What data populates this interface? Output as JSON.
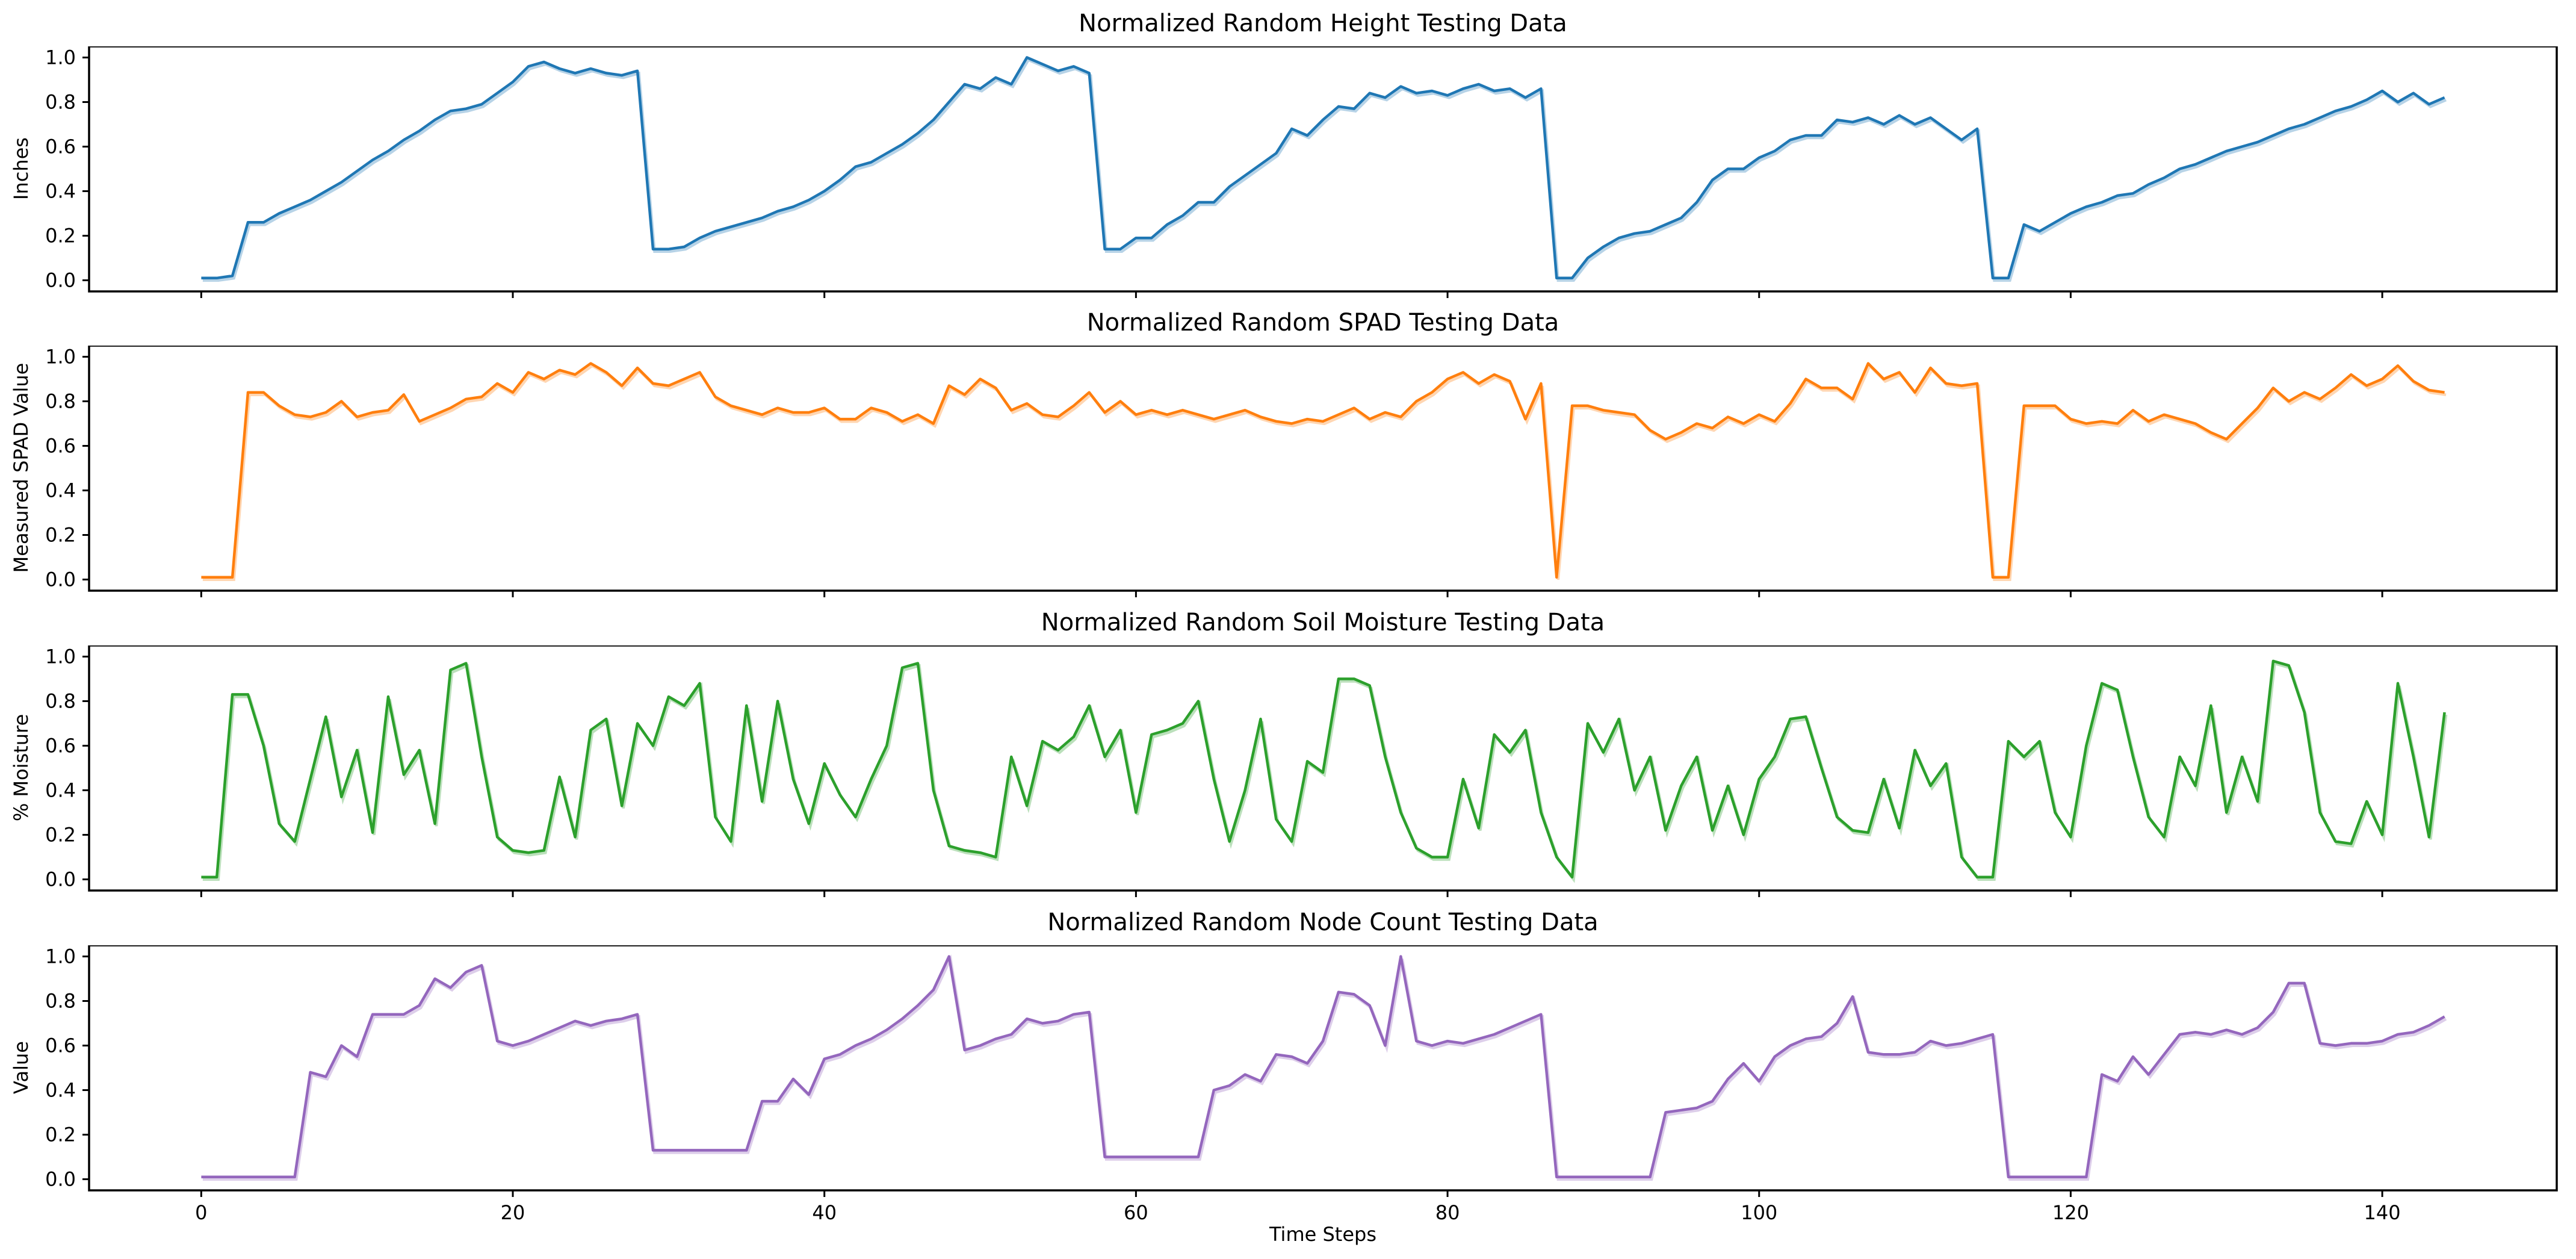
{
  "figure": {
    "background": "#ffffff",
    "text_color": "#000000",
    "spine_color": "#000000"
  },
  "axes": {
    "xlabel": "Time Steps",
    "xlim": [
      -7.2,
      151.2
    ],
    "ylim": [
      -0.05,
      1.05
    ],
    "grid": false,
    "legend": "none",
    "xticks": [
      {
        "value": 0,
        "label": "0"
      },
      {
        "value": 20,
        "label": "20"
      },
      {
        "value": 40,
        "label": "40"
      },
      {
        "value": 60,
        "label": "60"
      },
      {
        "value": 80,
        "label": "80"
      },
      {
        "value": 100,
        "label": "100"
      },
      {
        "value": 120,
        "label": "120"
      },
      {
        "value": 140,
        "label": "140"
      }
    ],
    "yticks": [
      {
        "value": 0.0,
        "label": "0.0"
      },
      {
        "value": 0.2,
        "label": "0.2"
      },
      {
        "value": 0.4,
        "label": "0.4"
      },
      {
        "value": 0.6,
        "label": "0.6"
      },
      {
        "value": 0.8,
        "label": "0.8"
      },
      {
        "value": 1.0,
        "label": "1.0"
      }
    ]
  },
  "chart_data": [
    {
      "type": "line",
      "title": "Normalized Random Height Testing Data",
      "ylabel": "Inches",
      "color": "#1f77b4",
      "x_start": 0,
      "x_step": 1,
      "values": [
        0.01,
        0.01,
        0.02,
        0.26,
        0.26,
        0.3,
        0.33,
        0.36,
        0.4,
        0.44,
        0.49,
        0.54,
        0.58,
        0.63,
        0.67,
        0.72,
        0.76,
        0.77,
        0.79,
        0.84,
        0.89,
        0.96,
        0.98,
        0.95,
        0.93,
        0.95,
        0.93,
        0.92,
        0.94,
        0.14,
        0.14,
        0.15,
        0.19,
        0.22,
        0.24,
        0.26,
        0.28,
        0.31,
        0.33,
        0.36,
        0.4,
        0.45,
        0.51,
        0.53,
        0.57,
        0.61,
        0.66,
        0.72,
        0.8,
        0.88,
        0.86,
        0.91,
        0.88,
        1.0,
        0.97,
        0.94,
        0.96,
        0.93,
        0.14,
        0.14,
        0.19,
        0.19,
        0.25,
        0.29,
        0.35,
        0.35,
        0.42,
        0.47,
        0.52,
        0.57,
        0.68,
        0.65,
        0.72,
        0.78,
        0.77,
        0.84,
        0.82,
        0.87,
        0.84,
        0.85,
        0.83,
        0.86,
        0.88,
        0.85,
        0.86,
        0.82,
        0.86,
        0.01,
        0.01,
        0.1,
        0.15,
        0.19,
        0.21,
        0.22,
        0.25,
        0.28,
        0.35,
        0.45,
        0.5,
        0.5,
        0.55,
        0.58,
        0.63,
        0.65,
        0.65,
        0.72,
        0.71,
        0.73,
        0.7,
        0.74,
        0.7,
        0.73,
        0.68,
        0.63,
        0.68,
        0.01,
        0.01,
        0.25,
        0.22,
        0.26,
        0.3,
        0.33,
        0.35,
        0.38,
        0.39,
        0.43,
        0.46,
        0.5,
        0.52,
        0.55,
        0.58,
        0.6,
        0.62,
        0.65,
        0.68,
        0.7,
        0.73,
        0.76,
        0.78,
        0.81,
        0.85,
        0.8,
        0.84,
        0.79,
        0.82
      ]
    },
    {
      "type": "line",
      "title": "Normalized Random SPAD Testing Data",
      "ylabel": "Measured SPAD Value",
      "color": "#ff7f0e",
      "x_start": 0,
      "x_step": 1,
      "values": [
        0.01,
        0.01,
        0.01,
        0.84,
        0.84,
        0.78,
        0.74,
        0.73,
        0.75,
        0.8,
        0.73,
        0.75,
        0.76,
        0.83,
        0.71,
        0.74,
        0.77,
        0.81,
        0.82,
        0.88,
        0.84,
        0.93,
        0.9,
        0.94,
        0.92,
        0.97,
        0.93,
        0.87,
        0.95,
        0.88,
        0.87,
        0.9,
        0.93,
        0.82,
        0.78,
        0.76,
        0.74,
        0.77,
        0.75,
        0.75,
        0.77,
        0.72,
        0.72,
        0.77,
        0.75,
        0.71,
        0.74,
        0.7,
        0.87,
        0.83,
        0.9,
        0.86,
        0.76,
        0.79,
        0.74,
        0.73,
        0.78,
        0.84,
        0.75,
        0.8,
        0.74,
        0.76,
        0.74,
        0.76,
        0.74,
        0.72,
        0.74,
        0.76,
        0.73,
        0.71,
        0.7,
        0.72,
        0.71,
        0.74,
        0.77,
        0.72,
        0.75,
        0.73,
        0.8,
        0.84,
        0.9,
        0.93,
        0.88,
        0.92,
        0.89,
        0.72,
        0.88,
        0.01,
        0.78,
        0.78,
        0.76,
        0.75,
        0.74,
        0.67,
        0.63,
        0.66,
        0.7,
        0.68,
        0.73,
        0.7,
        0.74,
        0.71,
        0.79,
        0.9,
        0.86,
        0.86,
        0.81,
        0.97,
        0.9,
        0.93,
        0.84,
        0.95,
        0.88,
        0.87,
        0.88,
        0.01,
        0.01,
        0.78,
        0.78,
        0.78,
        0.72,
        0.7,
        0.71,
        0.7,
        0.76,
        0.71,
        0.74,
        0.72,
        0.7,
        0.66,
        0.63,
        0.7,
        0.77,
        0.86,
        0.8,
        0.84,
        0.81,
        0.86,
        0.92,
        0.87,
        0.9,
        0.96,
        0.89,
        0.85,
        0.84
      ]
    },
    {
      "type": "line",
      "title": "Normalized Random Soil Moisture Testing Data",
      "ylabel": "% Moisture",
      "color": "#2ca02c",
      "x_start": 0,
      "x_step": 1,
      "values": [
        0.01,
        0.01,
        0.83,
        0.83,
        0.6,
        0.25,
        0.17,
        0.45,
        0.73,
        0.37,
        0.58,
        0.21,
        0.82,
        0.47,
        0.58,
        0.25,
        0.94,
        0.97,
        0.55,
        0.19,
        0.13,
        0.12,
        0.13,
        0.46,
        0.19,
        0.67,
        0.72,
        0.33,
        0.7,
        0.6,
        0.82,
        0.78,
        0.88,
        0.28,
        0.17,
        0.78,
        0.35,
        0.8,
        0.45,
        0.25,
        0.52,
        0.38,
        0.28,
        0.45,
        0.6,
        0.95,
        0.97,
        0.4,
        0.15,
        0.13,
        0.12,
        0.1,
        0.55,
        0.33,
        0.62,
        0.58,
        0.64,
        0.78,
        0.55,
        0.67,
        0.3,
        0.65,
        0.67,
        0.7,
        0.8,
        0.45,
        0.17,
        0.4,
        0.72,
        0.27,
        0.17,
        0.53,
        0.48,
        0.9,
        0.9,
        0.87,
        0.55,
        0.3,
        0.14,
        0.1,
        0.1,
        0.45,
        0.23,
        0.65,
        0.57,
        0.67,
        0.3,
        0.1,
        0.01,
        0.7,
        0.57,
        0.72,
        0.4,
        0.55,
        0.22,
        0.42,
        0.55,
        0.22,
        0.42,
        0.2,
        0.45,
        0.55,
        0.72,
        0.73,
        0.5,
        0.28,
        0.22,
        0.21,
        0.45,
        0.23,
        0.58,
        0.42,
        0.52,
        0.1,
        0.01,
        0.01,
        0.62,
        0.55,
        0.62,
        0.3,
        0.19,
        0.6,
        0.88,
        0.85,
        0.55,
        0.28,
        0.19,
        0.55,
        0.42,
        0.78,
        0.3,
        0.55,
        0.35,
        0.98,
        0.96,
        0.75,
        0.3,
        0.17,
        0.16,
        0.35,
        0.2,
        0.88,
        0.55,
        0.19,
        0.75
      ]
    },
    {
      "type": "line",
      "title": "Normalized Random Node Count Testing Data",
      "ylabel": "Value",
      "color": "#9467bd",
      "x_start": 0,
      "x_step": 1,
      "values": [
        0.01,
        0.01,
        0.01,
        0.01,
        0.01,
        0.01,
        0.01,
        0.48,
        0.46,
        0.6,
        0.55,
        0.74,
        0.74,
        0.74,
        0.78,
        0.9,
        0.86,
        0.93,
        0.96,
        0.62,
        0.6,
        0.62,
        0.65,
        0.68,
        0.71,
        0.69,
        0.71,
        0.72,
        0.74,
        0.13,
        0.13,
        0.13,
        0.13,
        0.13,
        0.13,
        0.13,
        0.35,
        0.35,
        0.45,
        0.38,
        0.54,
        0.56,
        0.6,
        0.63,
        0.67,
        0.72,
        0.78,
        0.85,
        1.0,
        0.58,
        0.6,
        0.63,
        0.65,
        0.72,
        0.7,
        0.71,
        0.74,
        0.75,
        0.1,
        0.1,
        0.1,
        0.1,
        0.1,
        0.1,
        0.1,
        0.4,
        0.42,
        0.47,
        0.44,
        0.56,
        0.55,
        0.52,
        0.62,
        0.84,
        0.83,
        0.78,
        0.6,
        1.0,
        0.62,
        0.6,
        0.62,
        0.61,
        0.63,
        0.65,
        0.68,
        0.71,
        0.74,
        0.01,
        0.01,
        0.01,
        0.01,
        0.01,
        0.01,
        0.01,
        0.3,
        0.31,
        0.32,
        0.35,
        0.45,
        0.52,
        0.44,
        0.55,
        0.6,
        0.63,
        0.64,
        0.7,
        0.82,
        0.57,
        0.56,
        0.56,
        0.57,
        0.62,
        0.6,
        0.61,
        0.63,
        0.65,
        0.01,
        0.01,
        0.01,
        0.01,
        0.01,
        0.01,
        0.47,
        0.44,
        0.55,
        0.47,
        0.56,
        0.65,
        0.66,
        0.65,
        0.67,
        0.65,
        0.68,
        0.75,
        0.88,
        0.88,
        0.61,
        0.6,
        0.61,
        0.61,
        0.62,
        0.65,
        0.66,
        0.69,
        0.73
      ]
    }
  ]
}
